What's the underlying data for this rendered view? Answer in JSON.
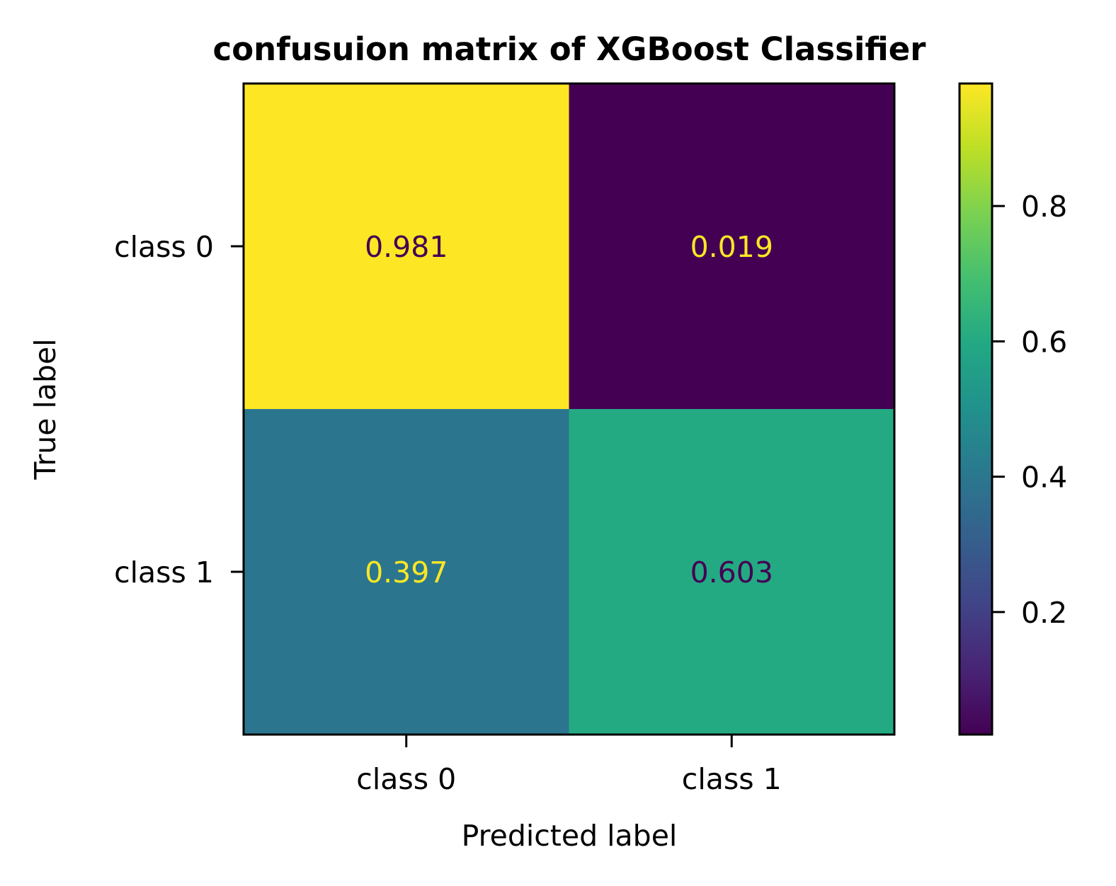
{
  "chart_data": {
    "type": "heatmap",
    "title": "confusuion matrix of XGBoost Classifier",
    "xlabel": "Predicted label",
    "ylabel": "True label",
    "x_categories": [
      "class 0",
      "class 1"
    ],
    "y_categories": [
      "class 0",
      "class 1"
    ],
    "values": [
      [
        0.981,
        0.019
      ],
      [
        0.397,
        0.603
      ]
    ],
    "value_labels": [
      [
        "0.981",
        "0.019"
      ],
      [
        "0.397",
        "0.603"
      ]
    ],
    "colormap": "viridis",
    "colorbar": {
      "range": [
        0.019,
        0.981
      ],
      "ticks": [
        0.2,
        0.4,
        0.6,
        0.8
      ],
      "tick_labels": [
        "0.2",
        "0.4",
        "0.6",
        "0.8"
      ]
    },
    "grid": false
  }
}
